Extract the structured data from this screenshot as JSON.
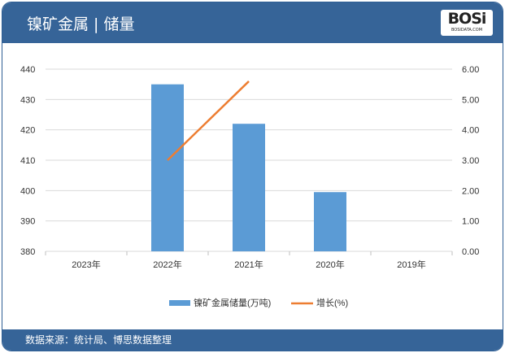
{
  "header": {
    "title": "镍矿金属 | 储量",
    "logo_text": "BOSi",
    "logo_sub": "BOSIDATA.COM"
  },
  "footer": {
    "source": "数据来源：统计局、博思数据整理"
  },
  "colors": {
    "bar": "#5b9bd5",
    "line": "#ed7d31",
    "header": "#366498"
  },
  "chart_data": {
    "type": "bar+line",
    "categories": [
      "2023年",
      "2022年",
      "2021年",
      "2020年",
      "2019年"
    ],
    "series": [
      {
        "name": "镍矿金属储量(万吨)",
        "type": "bar",
        "axis": "left",
        "values": [
          null,
          435,
          422,
          399.5,
          null
        ]
      },
      {
        "name": "增长(%)",
        "type": "line",
        "axis": "right",
        "values": [
          null,
          3.0,
          5.6,
          null,
          null
        ]
      }
    ],
    "y_left": {
      "min": 380,
      "max": 440,
      "ticks": [
        "380",
        "390",
        "400",
        "410",
        "420",
        "430",
        "440"
      ]
    },
    "y_right": {
      "min": 0,
      "max": 6,
      "ticks": [
        "0.00",
        "1.00",
        "2.00",
        "3.00",
        "4.00",
        "5.00",
        "6.00"
      ]
    },
    "grid": true,
    "legend": "bottom"
  }
}
